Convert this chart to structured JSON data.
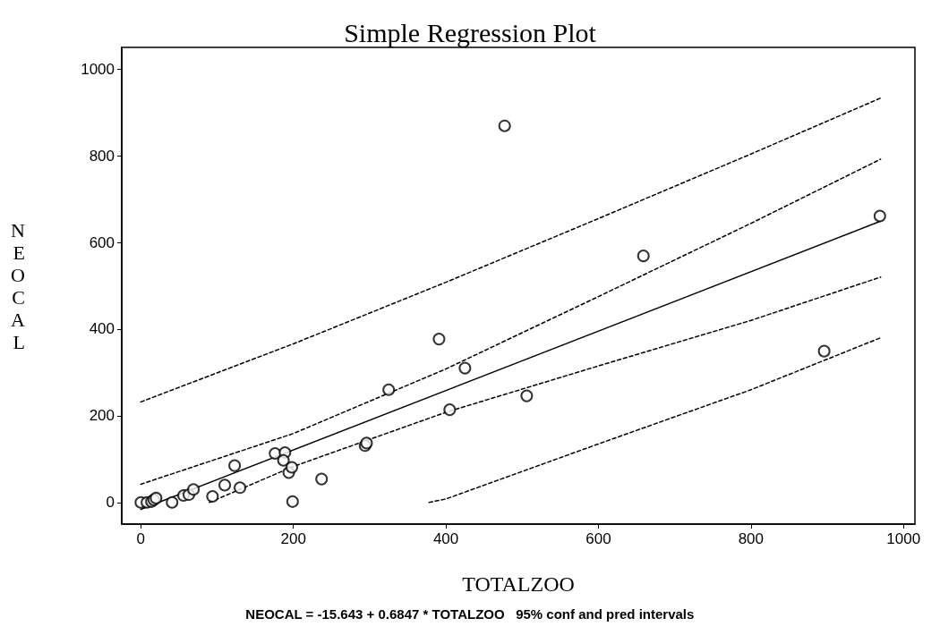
{
  "chart_data": {
    "type": "scatter",
    "title": "Simple Regression Plot",
    "xlabel": "TOTALZOO",
    "ylabel": "NEOCAL",
    "annotations": [
      "NEOCAL = -15.643 + 0.6847 * TOTALZOO   95% conf and pred intervals"
    ],
    "xlim": [
      -25,
      1015
    ],
    "ylim": [
      -50,
      1050
    ],
    "xticks": [
      0,
      200,
      400,
      600,
      800,
      1000
    ],
    "yticks": [
      0,
      200,
      400,
      600,
      800,
      1000
    ],
    "series": [
      {
        "marker": "circle",
        "color": "#000000",
        "x": [
          0,
          8,
          14,
          17,
          20,
          41,
          56,
          63,
          69,
          94,
          110,
          123,
          130,
          176,
          189,
          187,
          194,
          198,
          199,
          237,
          294,
          296,
          325,
          391,
          425,
          405,
          506,
          477,
          659,
          896,
          969
        ],
        "values": [
          0,
          0,
          2,
          6,
          10,
          0,
          16,
          18,
          30,
          14,
          40,
          85,
          34,
          113,
          115,
          97,
          69,
          81,
          2,
          54,
          131,
          137,
          260,
          377,
          310,
          214,
          246,
          869,
          569,
          349,
          661
        ]
      },
      {
        "type": "line",
        "marker": "none",
        "line_style": "solid",
        "color": "#000000",
        "x": [
          0,
          970
        ],
        "values": [
          -16,
          649
        ]
      },
      {
        "type": "line",
        "marker": "none",
        "line_style": "dashed",
        "color": "#000000",
        "x": [
          0,
          200,
          400,
          600,
          800,
          970
        ],
        "values": [
          232,
          366,
          508,
          655,
          804,
          933
        ]
      },
      {
        "type": "line",
        "marker": "none",
        "line_style": "dashed",
        "color": "#000000",
        "x": [
          0,
          200,
          400,
          600,
          800,
          970
        ],
        "values": [
          42,
          159,
          308,
          475,
          644,
          792
        ]
      },
      {
        "type": "line",
        "marker": "none",
        "line_style": "dashed",
        "color": "#000000",
        "x": [
          90,
          200,
          400,
          600,
          800,
          970
        ],
        "values": [
          0,
          83,
          208,
          315,
          420,
          520
        ]
      },
      {
        "type": "line",
        "marker": "none",
        "line_style": "dashed",
        "color": "#000000",
        "x": [
          378,
          400,
          600,
          800,
          970
        ],
        "values": [
          0,
          8,
          135,
          260,
          380
        ]
      }
    ]
  }
}
